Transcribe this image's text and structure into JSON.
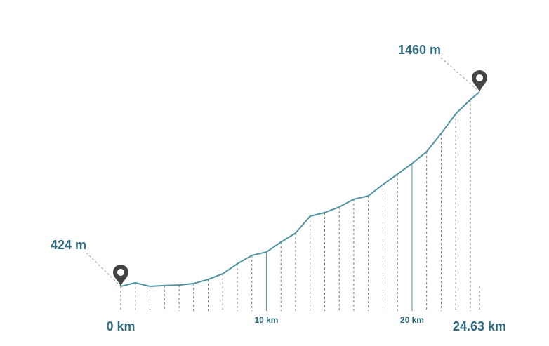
{
  "chart_data": {
    "type": "line",
    "x": [
      0,
      1,
      2,
      3,
      4,
      5,
      6,
      7,
      8,
      9,
      10,
      11,
      12,
      13,
      14,
      15,
      16,
      17,
      18,
      19,
      20,
      21,
      22,
      23,
      24,
      24.63
    ],
    "series": [
      {
        "color": "#4f93a3",
        "values": [
          424,
          443,
          424,
          428,
          431,
          439,
          461,
          491,
          544,
          589,
          607,
          660,
          708,
          798,
          817,
          847,
          888,
          906,
          966,
          1022,
          1078,
          1142,
          1239,
          1344,
          1419,
          1460
        ]
      }
    ],
    "xlim": [
      0,
      24.63
    ],
    "xticks": [
      {
        "value": 0,
        "label": "0 km"
      },
      {
        "value": 10,
        "label": "10 km"
      },
      {
        "value": 20,
        "label": "20 km"
      },
      {
        "value": 24.63,
        "label": "24.63 km"
      }
    ],
    "annotations": [
      {
        "value": 424,
        "label": "424 m"
      },
      {
        "value": 1460,
        "label": "1460 m"
      }
    ]
  }
}
